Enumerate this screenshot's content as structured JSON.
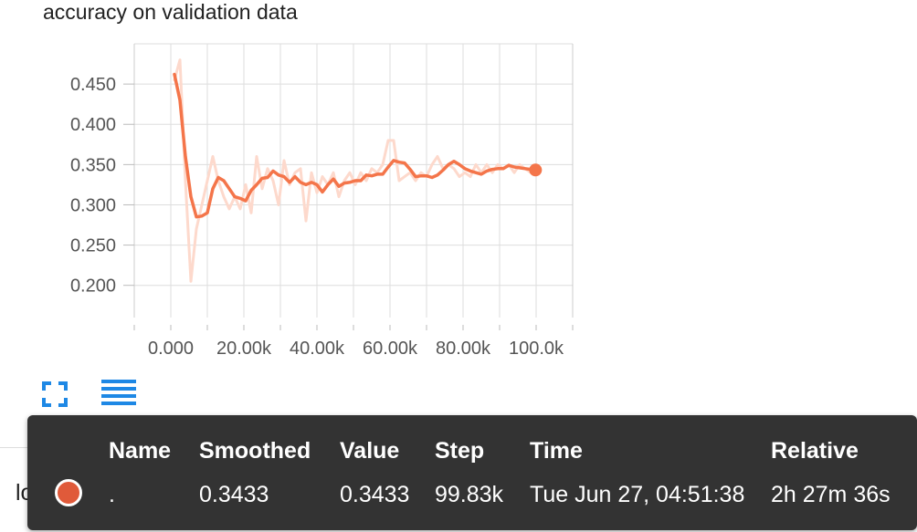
{
  "chart_data": {
    "type": "line",
    "title": "accuracy on validation data",
    "xlabel": "",
    "ylabel": "",
    "xlim": [
      -10000,
      110000
    ],
    "ylim": [
      0.16,
      0.5
    ],
    "x_ticks": [
      0,
      20000,
      40000,
      60000,
      80000,
      100000
    ],
    "x_tick_labels": [
      "0.000",
      "20.00k",
      "40.00k",
      "60.00k",
      "80.00k",
      "100.0k"
    ],
    "y_ticks": [
      0.2,
      0.25,
      0.3,
      0.35,
      0.4,
      0.45
    ],
    "y_tick_labels": [
      "0.200",
      "0.250",
      "0.300",
      "0.350",
      "0.400",
      "0.450"
    ],
    "grid": true,
    "series": [
      {
        "role": "raw",
        "color": "#fdd9cc",
        "x": [
          1000,
          2500,
          4000,
          5500,
          7000,
          8500,
          10000,
          11500,
          13000,
          14500,
          16000,
          17500,
          19000,
          20500,
          22000,
          23500,
          25000,
          26500,
          28000,
          29500,
          31000,
          32500,
          34000,
          35500,
          37000,
          38500,
          40000,
          41500,
          43000,
          44500,
          46000,
          47500,
          49000,
          50500,
          52000,
          53500,
          55000,
          56500,
          58000,
          59500,
          61000,
          62500,
          64000,
          65500,
          67000,
          68500,
          70000,
          71500,
          73000,
          74500,
          76000,
          77500,
          79000,
          80500,
          82000,
          83500,
          85000,
          86500,
          88000,
          89500,
          91000,
          92500,
          94000,
          95500,
          97000,
          98500,
          99830
        ],
        "values": [
          0.455,
          0.48,
          0.33,
          0.205,
          0.27,
          0.3,
          0.33,
          0.36,
          0.33,
          0.31,
          0.295,
          0.31,
          0.295,
          0.325,
          0.29,
          0.36,
          0.32,
          0.345,
          0.33,
          0.3,
          0.355,
          0.325,
          0.34,
          0.345,
          0.28,
          0.34,
          0.315,
          0.335,
          0.325,
          0.34,
          0.31,
          0.33,
          0.34,
          0.325,
          0.34,
          0.33,
          0.345,
          0.34,
          0.35,
          0.38,
          0.38,
          0.33,
          0.335,
          0.34,
          0.33,
          0.34,
          0.335,
          0.35,
          0.36,
          0.345,
          0.35,
          0.345,
          0.335,
          0.34,
          0.335,
          0.35,
          0.34,
          0.35,
          0.34,
          0.35,
          0.345,
          0.35,
          0.34,
          0.35,
          0.345,
          0.34,
          0.3433
        ]
      },
      {
        "role": "smoothed",
        "color": "#f4754a",
        "x": [
          1000,
          2500,
          4000,
          5500,
          7000,
          8500,
          10000,
          11500,
          13000,
          14500,
          16000,
          17500,
          19000,
          20500,
          22000,
          23500,
          25000,
          26500,
          28000,
          29500,
          31000,
          32500,
          34000,
          35500,
          37000,
          38500,
          40000,
          41500,
          43000,
          44500,
          46000,
          47500,
          49000,
          50500,
          52000,
          53500,
          55000,
          56500,
          58000,
          59500,
          61000,
          62500,
          64000,
          65500,
          67000,
          68500,
          70000,
          71500,
          73000,
          74500,
          76000,
          77500,
          79000,
          80500,
          82000,
          83500,
          85000,
          86500,
          88000,
          89500,
          91000,
          92500,
          94000,
          95500,
          97000,
          98500,
          99830
        ],
        "values": [
          0.462,
          0.43,
          0.36,
          0.31,
          0.285,
          0.286,
          0.29,
          0.32,
          0.334,
          0.33,
          0.32,
          0.31,
          0.308,
          0.305,
          0.318,
          0.325,
          0.333,
          0.334,
          0.342,
          0.337,
          0.335,
          0.328,
          0.335,
          0.328,
          0.325,
          0.328,
          0.325,
          0.316,
          0.325,
          0.332,
          0.323,
          0.327,
          0.328,
          0.33,
          0.33,
          0.337,
          0.336,
          0.338,
          0.338,
          0.347,
          0.355,
          0.353,
          0.352,
          0.344,
          0.335,
          0.336,
          0.336,
          0.334,
          0.337,
          0.343,
          0.35,
          0.354,
          0.35,
          0.345,
          0.342,
          0.34,
          0.338,
          0.342,
          0.344,
          0.345,
          0.345,
          0.349,
          0.347,
          0.346,
          0.345,
          0.344,
          0.3433
        ]
      }
    ]
  },
  "controls": {
    "expand_icon": "expand-icon",
    "lines_icon": "lines-icon",
    "icon_color": "#1e88e5"
  },
  "run_label": "loss",
  "tooltip": {
    "headers": {
      "name": "Name",
      "smoothed": "Smoothed",
      "value": "Value",
      "step": "Step",
      "time": "Time",
      "relative": "Relative"
    },
    "row": {
      "swatch_color": "#e05a3a",
      "name": ".",
      "smoothed": "0.3433",
      "value": "0.3433",
      "step": "99.83k",
      "time": "Tue Jun 27, 04:51:38",
      "relative": "2h 27m 36s"
    }
  }
}
